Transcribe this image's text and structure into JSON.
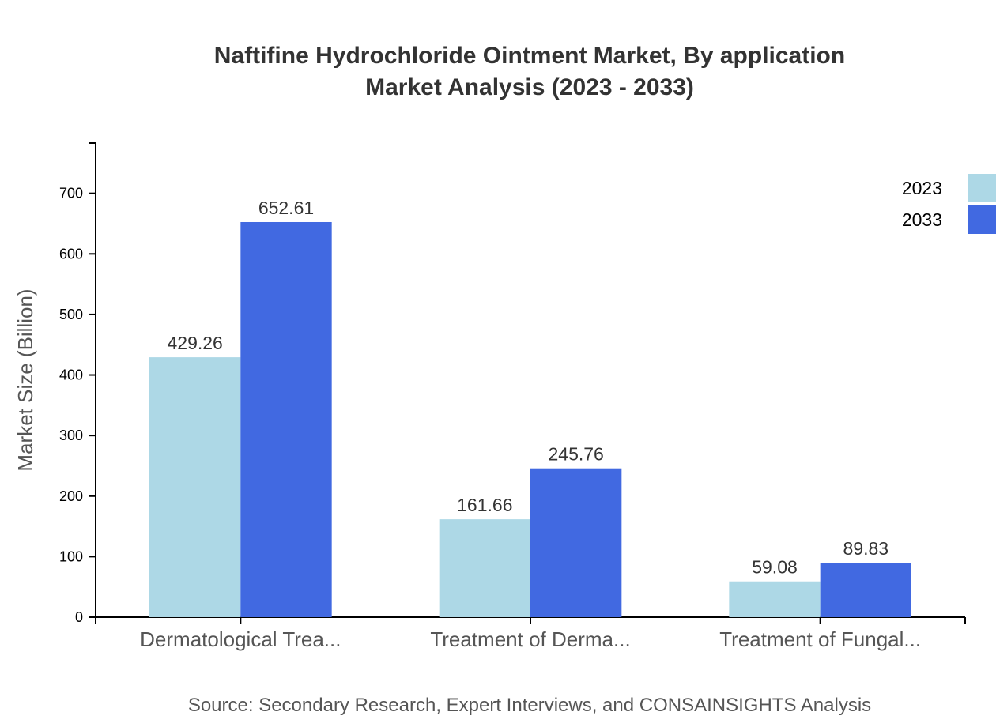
{
  "chart_data": {
    "type": "bar",
    "title": "Naftifine Hydrochloride Ointment Market, By application",
    "subtitle": "Market Analysis (2023 - 2033)",
    "ylabel": "Market Size (Billion)",
    "xlabel": "",
    "categories": [
      "Dermatological Trea...",
      "Treatment of Derma...",
      "Treatment of Fungal..."
    ],
    "series": [
      {
        "name": "2023",
        "color": "#add8e6",
        "values": [
          429.26,
          161.66,
          59.08
        ]
      },
      {
        "name": "2033",
        "color": "#4169e1",
        "values": [
          652.61,
          245.76,
          89.83
        ]
      }
    ],
    "ylim": [
      0,
      783.13
    ],
    "yticks": [
      0,
      100,
      200,
      300,
      400,
      500,
      600,
      700
    ],
    "grid": false,
    "legend": "top-right",
    "source": "Source: Secondary Research, Expert Interviews, and CONSAINSIGHTS Analysis"
  }
}
